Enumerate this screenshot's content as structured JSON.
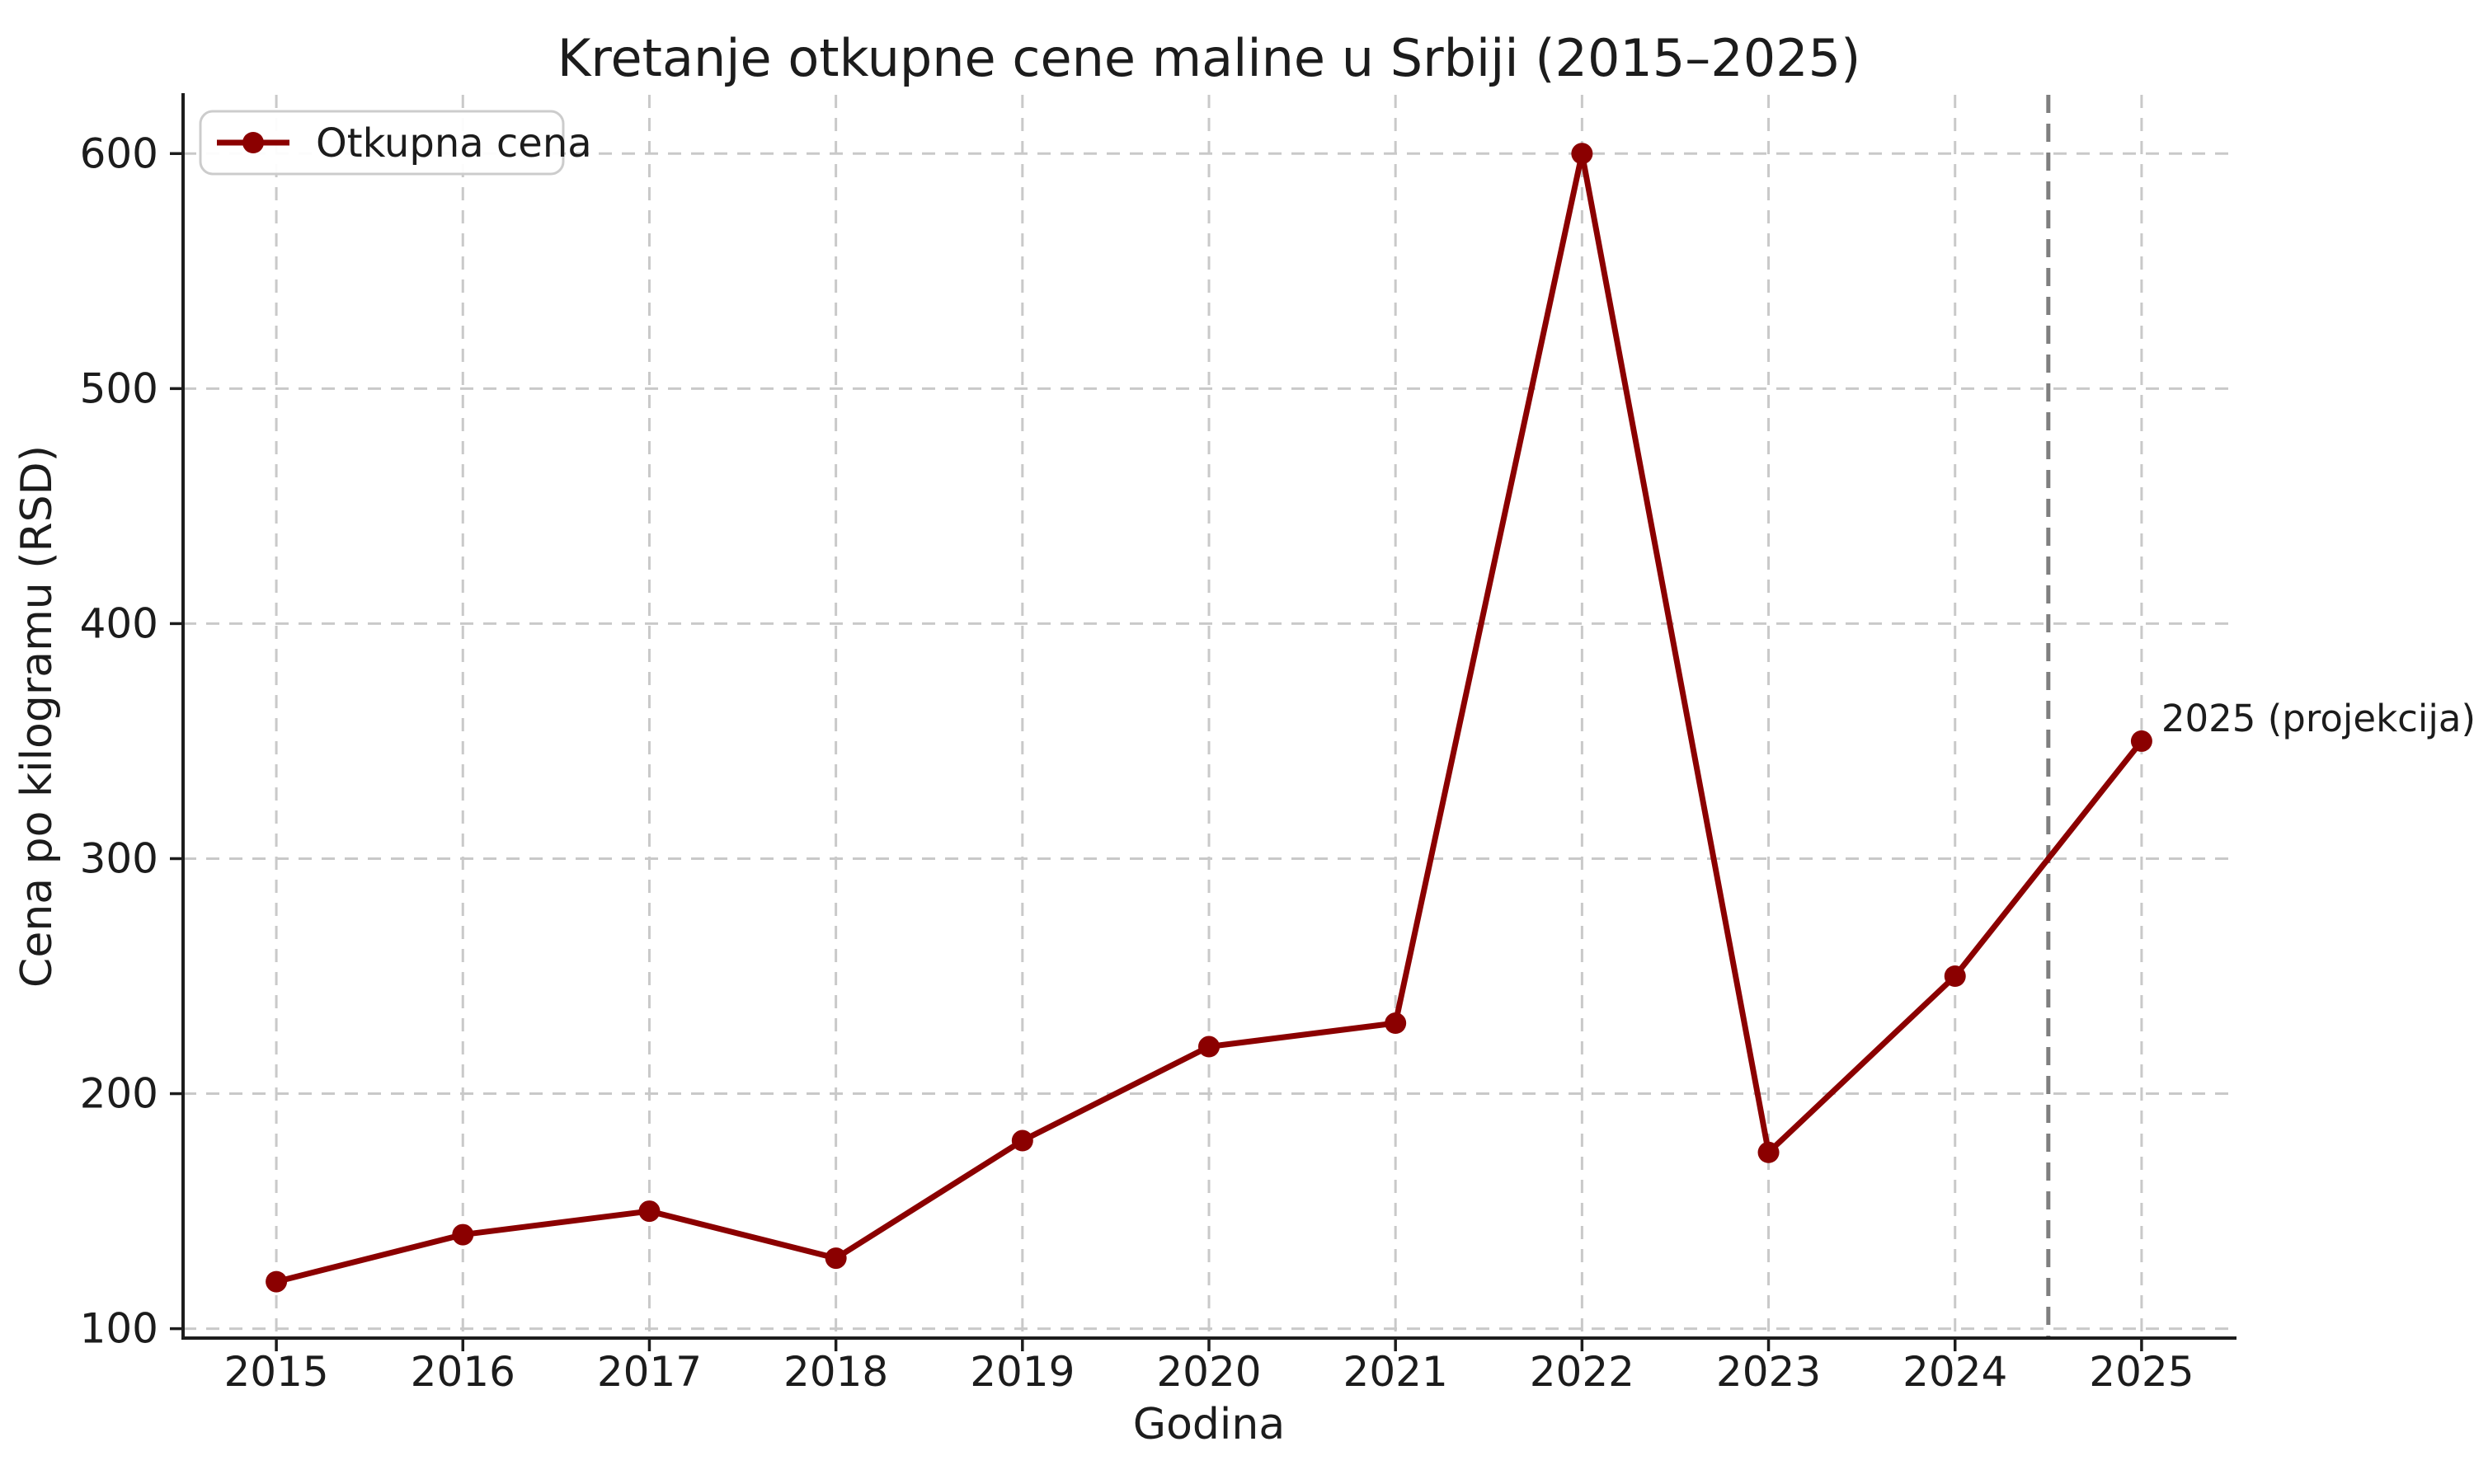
{
  "chart_data": {
    "type": "line",
    "title": "Kretanje otkupne cene maline u Srbiji (2015–2025)",
    "xlabel": "Godina",
    "ylabel": "Cena po kilogramu (RSD)",
    "x": [
      2015,
      2016,
      2017,
      2018,
      2019,
      2020,
      2021,
      2022,
      2023,
      2024,
      2025
    ],
    "series": [
      {
        "name": "Otkupna cena",
        "values": [
          120,
          140,
          150,
          130,
          180,
          220,
          230,
          600,
          175,
          250,
          350
        ],
        "color": "#8b0000",
        "marker": "circle"
      }
    ],
    "xticks": [
      2015,
      2016,
      2017,
      2018,
      2019,
      2020,
      2021,
      2022,
      2023,
      2024,
      2025
    ],
    "yticks": [
      100,
      200,
      300,
      400,
      500,
      600
    ],
    "xlim": [
      2014.5,
      2025.5
    ],
    "ylim": [
      96,
      625
    ],
    "grid": true,
    "legend_position": "upper left",
    "annotation": {
      "text": "2025 (projekcija)",
      "x": 2025,
      "y": 350,
      "color": "#006400"
    },
    "vline": {
      "x": 2024.5,
      "color": "#7f7f7f",
      "style": "dashed"
    }
  },
  "colors": {
    "background": "#ffffff",
    "grid": "#c9c9c9",
    "spine": "#1c1c1c",
    "text": "#1c1c1c",
    "series": "#8b0000",
    "vline": "#7f7f7f",
    "annotation": "#006400",
    "legend_border": "#cccccc"
  }
}
